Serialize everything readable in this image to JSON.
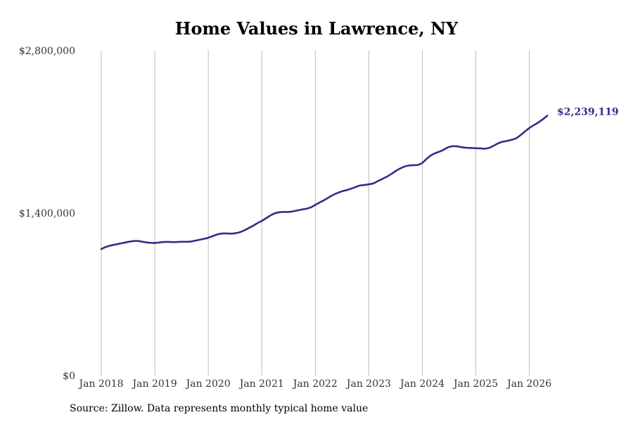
{
  "chart_data": {
    "type": "line",
    "title": "Home Values in Lawrence, NY",
    "xlabel": "",
    "ylabel": "",
    "source": "Source: Zillow. Data represents monthly typical home value",
    "ylim": [
      0,
      2800000
    ],
    "y_ticks": [
      {
        "value": 0,
        "label": "$0"
      },
      {
        "value": 1400000,
        "label": "$1,400,000"
      },
      {
        "value": 2800000,
        "label": "$2,800,000"
      }
    ],
    "x_ticks": [
      {
        "value": "2018-01",
        "label": "Jan 2018"
      },
      {
        "value": "2019-01",
        "label": "Jan 2019"
      },
      {
        "value": "2020-01",
        "label": "Jan 2020"
      },
      {
        "value": "2021-01",
        "label": "Jan 2021"
      },
      {
        "value": "2022-01",
        "label": "Jan 2022"
      },
      {
        "value": "2023-01",
        "label": "Jan 2023"
      },
      {
        "value": "2024-01",
        "label": "Jan 2024"
      },
      {
        "value": "2025-01",
        "label": "Jan 2025"
      },
      {
        "value": "2026-01",
        "label": "Jan 2026"
      }
    ],
    "x_grid": true,
    "y_grid": false,
    "line_color": "#2e2e8a",
    "grid_color": "#bbbbbb",
    "end_label": "$2,239,119",
    "series": [
      {
        "name": "",
        "x": [
          "2018-01",
          "2018-02",
          "2018-03",
          "2018-04",
          "2018-05",
          "2018-06",
          "2018-07",
          "2018-08",
          "2018-09",
          "2018-10",
          "2018-11",
          "2018-12",
          "2019-01",
          "2019-02",
          "2019-03",
          "2019-04",
          "2019-05",
          "2019-06",
          "2019-07",
          "2019-08",
          "2019-09",
          "2019-10",
          "2019-11",
          "2019-12",
          "2020-01",
          "2020-02",
          "2020-03",
          "2020-04",
          "2020-05",
          "2020-06",
          "2020-07",
          "2020-08",
          "2020-09",
          "2020-10",
          "2020-11",
          "2020-12",
          "2021-01",
          "2021-02",
          "2021-03",
          "2021-04",
          "2021-05",
          "2021-06",
          "2021-07",
          "2021-08",
          "2021-09",
          "2021-10",
          "2021-11",
          "2021-12",
          "2022-01",
          "2022-02",
          "2022-03",
          "2022-04",
          "2022-05",
          "2022-06",
          "2022-07",
          "2022-08",
          "2022-09",
          "2022-10",
          "2022-11",
          "2022-12",
          "2023-01",
          "2023-02",
          "2023-03",
          "2023-04",
          "2023-05",
          "2023-06",
          "2023-07",
          "2023-08",
          "2023-09",
          "2023-10",
          "2023-11",
          "2023-12",
          "2024-01",
          "2024-02",
          "2024-03",
          "2024-04",
          "2024-05",
          "2024-06",
          "2024-07",
          "2024-08",
          "2024-09",
          "2024-10",
          "2024-11",
          "2024-12",
          "2025-01",
          "2025-02",
          "2025-03",
          "2025-04",
          "2025-05",
          "2025-06",
          "2025-07",
          "2025-08",
          "2025-09",
          "2025-10",
          "2025-11",
          "2025-12",
          "2026-01",
          "2026-02",
          "2026-03",
          "2026-04",
          "2026-05"
        ],
        "values": [
          1090000,
          1108000,
          1120000,
          1128000,
          1136000,
          1144000,
          1152000,
          1158000,
          1160000,
          1155000,
          1148000,
          1144000,
          1143000,
          1147000,
          1151000,
          1152000,
          1150000,
          1151000,
          1153000,
          1153000,
          1155000,
          1162000,
          1170000,
          1178000,
          1188000,
          1202000,
          1216000,
          1224000,
          1225000,
          1223000,
          1226000,
          1235000,
          1250000,
          1270000,
          1290000,
          1313000,
          1333000,
          1357000,
          1381000,
          1399000,
          1408000,
          1410000,
          1410000,
          1415000,
          1423000,
          1431000,
          1438000,
          1450000,
          1471000,
          1492000,
          1512000,
          1535000,
          1557000,
          1574000,
          1588000,
          1598000,
          1610000,
          1624000,
          1638000,
          1642000,
          1648000,
          1656000,
          1675000,
          1694000,
          1713000,
          1736000,
          1762000,
          1784000,
          1801000,
          1810000,
          1813000,
          1815000,
          1833000,
          1869000,
          1899000,
          1918000,
          1932000,
          1951000,
          1970000,
          1977000,
          1974000,
          1967000,
          1963000,
          1961000,
          1959000,
          1958000,
          1955000,
          1963000,
          1981000,
          2001000,
          2015000,
          2022000,
          2032000,
          2044000,
          2071000,
          2103000,
          2133000,
          2158000,
          2181000,
          2208000,
          2239119
        ]
      }
    ]
  }
}
